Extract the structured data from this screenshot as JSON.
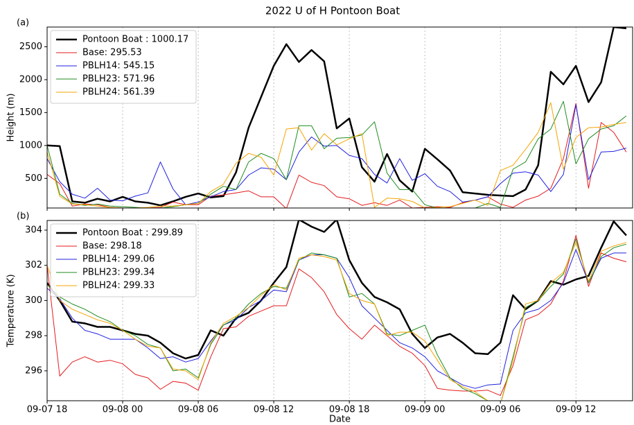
{
  "title": "2022 U of H Pontoon Boat",
  "chart_data": [
    {
      "type": "line",
      "panel_label": "(a)",
      "y_label": "Height (m)",
      "legend": "upper left",
      "grid": true,
      "x": [
        "09-07 18:00",
        "09-07 19:00",
        "09-07 20:00",
        "09-07 21:00",
        "09-07 22:00",
        "09-07 23:00",
        "09-08 00:00",
        "09-08 01:00",
        "09-08 02:00",
        "09-08 03:00",
        "09-08 04:00",
        "09-08 05:00",
        "09-08 06:00",
        "09-08 07:00",
        "09-08 08:00",
        "09-08 09:00",
        "09-08 10:00",
        "09-08 11:00",
        "09-08 12:00",
        "09-08 13:00",
        "09-08 14:00",
        "09-08 15:00",
        "09-08 16:00",
        "09-08 17:00",
        "09-08 18:00",
        "09-08 19:00",
        "09-08 20:00",
        "09-08 21:00",
        "09-08 22:00",
        "09-08 23:00",
        "09-09 00:00",
        "09-09 01:00",
        "09-09 02:00",
        "09-09 03:00",
        "09-09 04:00",
        "09-09 05:00",
        "09-09 06:00",
        "09-09 07:00",
        "09-09 08:00",
        "09-09 09:00",
        "09-09 10:00",
        "09-09 11:00",
        "09-09 12:00",
        "09-09 13:00",
        "09-09 14:00",
        "09-09 15:00",
        "09-09 16:00"
      ],
      "xlim": [
        "09-07 18:00",
        "09-09 16:30"
      ],
      "xticks": [
        "09-07 18:00",
        "09-08 00:00",
        "09-08 06:00",
        "09-08 12:00",
        "09-08 18:00",
        "09-09 00:00",
        "09-09 06:00",
        "09-09 12:00"
      ],
      "ylim": [
        50,
        2800
      ],
      "yticks": [
        500,
        1000,
        1500,
        2000,
        2500
      ],
      "series": [
        {
          "name": "Pontoon Boat : 1000.17",
          "color": "#000000",
          "width": 2.5,
          "values": [
            1000,
            990,
            150,
            130,
            190,
            150,
            220,
            150,
            130,
            90,
            150,
            220,
            270,
            210,
            230,
            590,
            1270,
            1740,
            2210,
            2540,
            2270,
            2450,
            2280,
            1260,
            1410,
            670,
            450,
            870,
            470,
            300,
            950,
            790,
            620,
            290,
            270,
            250,
            240,
            230,
            330,
            700,
            2120,
            1930,
            2210,
            1660,
            1960,
            2800,
            2780
          ]
        },
        {
          "name": "Base: 295.53",
          "color": "#e41a1c",
          "width": 1,
          "values": [
            560,
            420,
            80,
            110,
            100,
            60,
            50,
            40,
            50,
            60,
            140,
            100,
            100,
            230,
            250,
            280,
            310,
            220,
            220,
            40,
            550,
            440,
            390,
            220,
            190,
            90,
            130,
            90,
            170,
            50,
            60,
            70,
            60,
            130,
            170,
            220,
            110,
            60,
            170,
            230,
            350,
            800,
            1640,
            350,
            1350,
            1200,
            900
          ]
        },
        {
          "name": "PBLH14: 545.15",
          "color": "#1f1fe0",
          "width": 1,
          "values": [
            800,
            450,
            260,
            200,
            350,
            170,
            160,
            230,
            280,
            750,
            340,
            100,
            140,
            220,
            300,
            330,
            550,
            660,
            640,
            480,
            900,
            1130,
            990,
            1000,
            850,
            800,
            560,
            430,
            800,
            470,
            570,
            380,
            300,
            140,
            170,
            220,
            420,
            580,
            600,
            550,
            300,
            560,
            1620,
            480,
            900,
            910,
            960
          ]
        },
        {
          "name": "PBLH23: 571.96",
          "color": "#1e8c1e",
          "width": 1,
          "values": [
            1000,
            260,
            120,
            90,
            110,
            80,
            70,
            60,
            50,
            50,
            70,
            100,
            120,
            260,
            380,
            330,
            750,
            880,
            800,
            480,
            1300,
            1300,
            950,
            1110,
            1120,
            1160,
            1360,
            580,
            330,
            330,
            100,
            50,
            40,
            30,
            50,
            120,
            60,
            640,
            750,
            1100,
            1250,
            1670,
            720,
            1100,
            1250,
            1300,
            1450
          ]
        },
        {
          "name": "PBLH24: 561.39",
          "color": "#f5a300",
          "width": 1,
          "values": [
            900,
            230,
            110,
            100,
            80,
            60,
            50,
            50,
            60,
            80,
            80,
            100,
            120,
            300,
            410,
            730,
            880,
            820,
            550,
            1250,
            1270,
            930,
            1180,
            1010,
            1100,
            1180,
            60,
            200,
            190,
            150,
            50,
            60,
            70,
            120,
            170,
            90,
            620,
            700,
            940,
            1200,
            1650,
            640,
            1120,
            1270,
            1280,
            1320,
            1350
          ]
        }
      ]
    },
    {
      "type": "line",
      "panel_label": "(b)",
      "y_label": "Temperature (K)",
      "x_label": "Date",
      "legend": "upper left",
      "grid": true,
      "x": [
        "09-07 18:00",
        "09-07 19:00",
        "09-07 20:00",
        "09-07 21:00",
        "09-07 22:00",
        "09-07 23:00",
        "09-08 00:00",
        "09-08 01:00",
        "09-08 02:00",
        "09-08 03:00",
        "09-08 04:00",
        "09-08 05:00",
        "09-08 06:00",
        "09-08 07:00",
        "09-08 08:00",
        "09-08 09:00",
        "09-08 10:00",
        "09-08 11:00",
        "09-08 12:00",
        "09-08 13:00",
        "09-08 14:00",
        "09-08 15:00",
        "09-08 16:00",
        "09-08 17:00",
        "09-08 18:00",
        "09-08 19:00",
        "09-08 20:00",
        "09-08 21:00",
        "09-08 22:00",
        "09-08 23:00",
        "09-09 00:00",
        "09-09 01:00",
        "09-09 02:00",
        "09-09 03:00",
        "09-09 04:00",
        "09-09 05:00",
        "09-09 06:00",
        "09-09 07:00",
        "09-09 08:00",
        "09-09 09:00",
        "09-09 10:00",
        "09-09 11:00",
        "09-09 12:00",
        "09-09 13:00",
        "09-09 14:00",
        "09-09 15:00",
        "09-09 16:00"
      ],
      "xlim": [
        "09-07 18:00",
        "09-09 16:30"
      ],
      "xticks": [
        {
          "value": "09-07 18:00",
          "label": "09-07 18"
        },
        {
          "value": "09-08 00:00",
          "label": "09-08 00"
        },
        {
          "value": "09-08 06:00",
          "label": "09-08 06"
        },
        {
          "value": "09-08 12:00",
          "label": "09-08 12"
        },
        {
          "value": "09-08 18:00",
          "label": "09-08 18"
        },
        {
          "value": "09-09 00:00",
          "label": "09-09 00"
        },
        {
          "value": "09-09 06:00",
          "label": "09-09 06"
        },
        {
          "value": "09-09 12:00",
          "label": "09-09 12"
        }
      ],
      "ylim": [
        294.3,
        304.55
      ],
      "yticks": [
        296,
        298,
        300,
        302,
        304
      ],
      "series": [
        {
          "name": "Pontoon Boat : 299.89",
          "color": "#000000",
          "width": 2.5,
          "values": [
            301.0,
            300.0,
            298.8,
            298.7,
            298.5,
            298.5,
            298.3,
            298.1,
            298.0,
            297.6,
            297.0,
            296.7,
            296.9,
            298.3,
            298.0,
            299.0,
            299.3,
            300.0,
            301.0,
            301.9,
            304.6,
            304.2,
            303.9,
            304.6,
            302.3,
            301.0,
            300.2,
            299.9,
            299.5,
            298.1,
            297.3,
            297.9,
            298.1,
            297.6,
            297.0,
            296.95,
            297.6,
            300.3,
            299.5,
            300.0,
            301.1,
            300.9,
            301.2,
            301.4,
            303.0,
            304.5,
            303.7
          ]
        },
        {
          "name": "Base: 298.18",
          "color": "#e41a1c",
          "width": 1,
          "values": [
            302.0,
            295.7,
            296.5,
            296.8,
            296.5,
            296.6,
            296.4,
            295.8,
            295.6,
            294.95,
            295.4,
            295.3,
            294.9,
            296.8,
            298.4,
            298.5,
            299.1,
            299.4,
            299.7,
            299.7,
            301.8,
            301.3,
            300.5,
            299.2,
            298.4,
            297.8,
            298.6,
            298.0,
            297.4,
            297.0,
            296.3,
            295.0,
            294.9,
            294.85,
            294.85,
            294.9,
            294.6,
            296.3,
            298.9,
            299.2,
            299.8,
            301.1,
            303.7,
            300.8,
            302.7,
            302.4,
            302.2
          ]
        },
        {
          "name": "PBLH14: 299.06",
          "color": "#1f1fe0",
          "width": 1,
          "values": [
            300.7,
            300.1,
            299.0,
            298.3,
            298.1,
            297.8,
            297.8,
            297.8,
            297.3,
            296.7,
            296.8,
            296.5,
            296.7,
            297.7,
            298.6,
            298.9,
            299.6,
            300.0,
            300.6,
            300.5,
            302.3,
            302.6,
            302.6,
            302.4,
            301.3,
            299.7,
            299.0,
            298.3,
            297.6,
            297.3,
            296.8,
            296.0,
            295.6,
            295.2,
            295.0,
            295.2,
            295.25,
            298.3,
            299.3,
            299.5,
            300.0,
            301.0,
            302.9,
            301.0,
            302.4,
            302.7,
            302.7
          ]
        },
        {
          "name": "PBLH23: 299.34",
          "color": "#1e8c1e",
          "width": 1,
          "values": [
            300.9,
            300.2,
            299.8,
            299.5,
            299.1,
            298.8,
            298.3,
            298.0,
            297.5,
            297.3,
            296.0,
            296.1,
            295.6,
            297.5,
            298.6,
            299.0,
            299.8,
            300.4,
            300.8,
            300.7,
            302.3,
            302.7,
            302.6,
            302.4,
            300.2,
            300.4,
            299.8,
            298.1,
            298.0,
            298.3,
            298.6,
            296.9,
            295.6,
            295.0,
            294.7,
            294.3,
            294.1,
            296.8,
            299.6,
            300.0,
            300.8,
            301.5,
            303.5,
            301.0,
            302.5,
            303.0,
            303.2
          ]
        },
        {
          "name": "PBLH24: 299.33",
          "color": "#f5a300",
          "width": 1,
          "values": [
            302.0,
            300.0,
            299.5,
            299.2,
            298.9,
            298.7,
            298.3,
            297.8,
            297.4,
            297.3,
            296.1,
            296.0,
            295.5,
            297.6,
            298.7,
            299.1,
            299.6,
            300.3,
            300.9,
            300.6,
            302.4,
            302.6,
            302.5,
            302.3,
            300.4,
            300.0,
            299.8,
            298.0,
            298.2,
            298.2,
            297.7,
            296.6,
            295.5,
            295.1,
            294.8,
            294.3,
            294.1,
            296.6,
            299.8,
            300.0,
            301.0,
            301.6,
            303.3,
            301.1,
            302.8,
            303.1,
            303.3
          ]
        }
      ]
    }
  ]
}
